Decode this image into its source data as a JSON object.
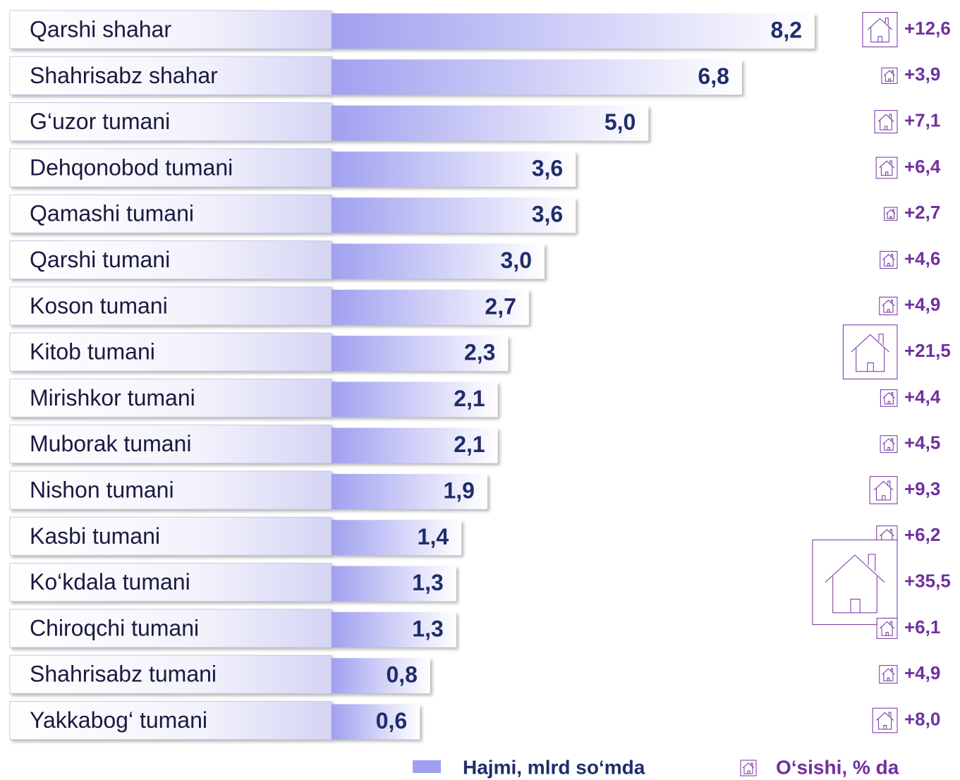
{
  "chart_data": {
    "type": "bar",
    "categories": [
      "Qarshi shahar",
      "Shahrisabz shahar",
      "G‘uzor tumani",
      "Dehqonobod tumani",
      "Qamashi tumani",
      "Qarshi tumani",
      "Koson tumani",
      "Kitob tumani",
      "Mirishkor tumani",
      "Muborak tumani",
      "Nishon tumani",
      "Kasbi tumani",
      "Ko‘kdala tumani",
      "Chiroqchi  tumani",
      "Shahrisabz tumani",
      "Yakkabog‘ tumani"
    ],
    "xlim": [
      -1.1,
      8.2
    ],
    "series": [
      {
        "name": "Hajmi, mlrd so‘mda",
        "color": "#a0a0f0",
        "values": [
          8.2,
          6.8,
          5.0,
          3.6,
          3.6,
          3.0,
          2.7,
          2.3,
          2.1,
          2.1,
          1.9,
          1.4,
          1.3,
          1.3,
          0.8,
          0.6
        ],
        "value_labels": [
          "8,2",
          "6,8",
          "5,0",
          "3,6",
          "3,6",
          "3,0",
          "2,7",
          "2,3",
          "2,1",
          "2,1",
          "1,9",
          "1,4",
          "1,3",
          "1,3",
          "0,8",
          "0,6"
        ]
      },
      {
        "name": "O‘sishi, % da",
        "color": "#7030a0",
        "values": [
          12.6,
          3.9,
          7.1,
          6.4,
          2.7,
          4.6,
          4.9,
          21.5,
          4.4,
          4.5,
          9.3,
          6.2,
          35.5,
          6.1,
          4.9,
          8.0
        ],
        "value_labels": [
          "+12,6",
          "+3,9",
          "+7,1",
          "+6,4",
          "+2,7",
          "+4,6",
          "+4,9",
          "+21,5",
          "+4,4",
          "+4,5",
          "+9,3",
          "+6,2",
          "+35,5",
          "+6,1",
          "+4,9",
          "+8,0"
        ]
      }
    ]
  }
}
